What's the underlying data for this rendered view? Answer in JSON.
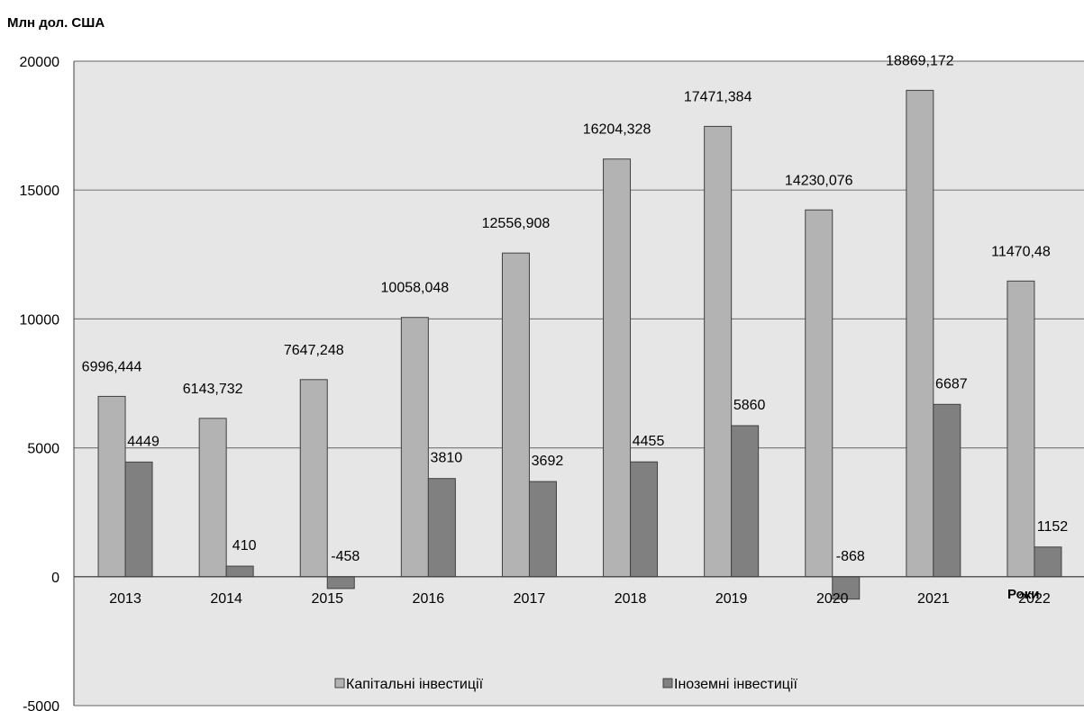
{
  "chart_data": {
    "type": "bar",
    "ylabel": "Млн дол. США",
    "xlabel": "Роки",
    "ylim": [
      -5000,
      20000
    ],
    "yticks": [
      20000,
      15000,
      10000,
      5000,
      0,
      -5000
    ],
    "grid": true,
    "legend_position": "bottom",
    "categories": [
      "2013",
      "2014",
      "2015",
      "2016",
      "2017",
      "2018",
      "2019",
      "2020",
      "2021",
      "2022"
    ],
    "series": [
      {
        "name": "Капітальні інвестиції",
        "color": "#b3b3b3",
        "values": [
          6996.444,
          6143.732,
          7647.248,
          10058.048,
          12556.908,
          16204.328,
          17471.384,
          14230.076,
          18869.172,
          11470.48
        ],
        "labels": [
          "6996,444",
          "6143,732",
          "7647,248",
          "10058,048",
          "12556,908",
          "16204,328",
          "17471,384",
          "14230,076",
          "18869,172",
          "11470,48"
        ]
      },
      {
        "name": "Іноземні інвестиції",
        "color": "#808080",
        "values": [
          4449,
          410,
          -458,
          3810,
          3692,
          4455,
          5860,
          -868,
          6687,
          1152
        ],
        "labels": [
          "4449",
          "410",
          "-458",
          "3810",
          "3692",
          "4455",
          "5860",
          "-868",
          "6687",
          "1152"
        ]
      }
    ]
  },
  "colors": {
    "plot_bg": "#e6e6e6",
    "grid": "#808080",
    "bar_border": "#404040"
  }
}
